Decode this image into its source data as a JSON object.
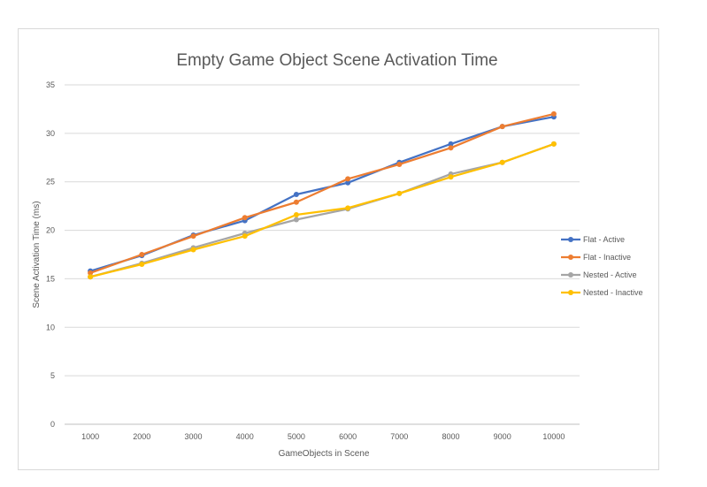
{
  "chart_data": {
    "type": "line",
    "title": "Empty Game Object Scene Activation Time",
    "xlabel": "GameObjects in Scene",
    "ylabel": "Scene Activation Time (ms)",
    "categories": [
      "1000",
      "2000",
      "3000",
      "4000",
      "5000",
      "6000",
      "7000",
      "8000",
      "9000",
      "10000"
    ],
    "ylim": [
      0,
      35
    ],
    "yticks": [
      "0",
      "5",
      "10",
      "15",
      "20",
      "25",
      "30",
      "35"
    ],
    "grid": true,
    "legend_position": "right",
    "series": [
      {
        "name": "Flat - Active",
        "color": "#4472C4",
        "values": [
          15.8,
          17.4,
          19.5,
          21.0,
          23.7,
          24.9,
          27.0,
          28.9,
          30.7,
          31.7
        ]
      },
      {
        "name": "Flat - Inactive",
        "color": "#ED7D31",
        "values": [
          15.6,
          17.5,
          19.4,
          21.3,
          22.9,
          25.3,
          26.8,
          28.5,
          30.7,
          32.0
        ]
      },
      {
        "name": "Nested - Active",
        "color": "#A5A5A5",
        "values": [
          15.2,
          16.6,
          18.2,
          19.7,
          21.1,
          22.2,
          23.8,
          25.8,
          27.0,
          28.9
        ]
      },
      {
        "name": "Nested - Inactive",
        "color": "#FFC000",
        "values": [
          15.2,
          16.5,
          18.0,
          19.4,
          21.6,
          22.3,
          23.8,
          25.5,
          27.0,
          28.9
        ]
      }
    ]
  }
}
